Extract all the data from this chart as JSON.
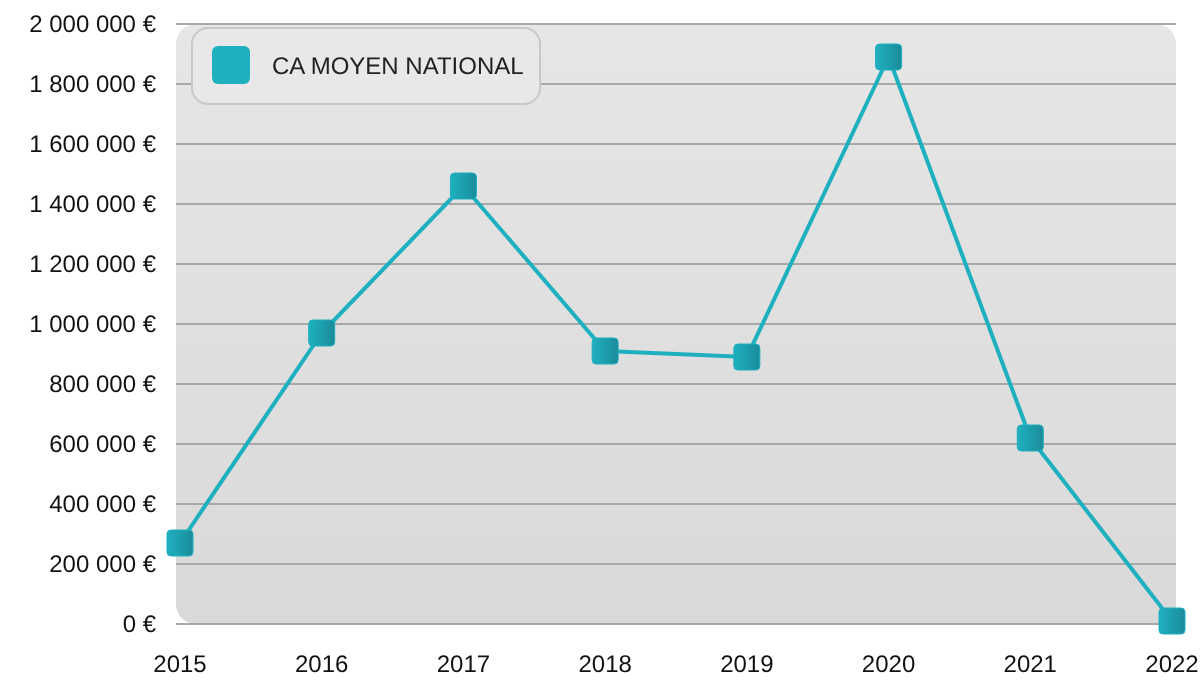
{
  "chart_data": {
    "type": "line",
    "categories": [
      "2015",
      "2016",
      "2017",
      "2018",
      "2019",
      "2020",
      "2021",
      "2022"
    ],
    "series": [
      {
        "name": "CA MOYEN NATIONAL",
        "color": "#1fb0c0",
        "values": [
          270000,
          970000,
          1460000,
          910000,
          890000,
          1890000,
          620000,
          10000
        ]
      }
    ],
    "ylim": [
      0,
      2000000
    ],
    "yticks": [
      {
        "value": 0,
        "label": "0 €"
      },
      {
        "value": 200000,
        "label": "200 000 €"
      },
      {
        "value": 400000,
        "label": "400 000 €"
      },
      {
        "value": 600000,
        "label": "600 000 €"
      },
      {
        "value": 800000,
        "label": "800 000 €"
      },
      {
        "value": 1000000,
        "label": "1 000 000 €"
      },
      {
        "value": 1200000,
        "label": "1 200 000 €"
      },
      {
        "value": 1400000,
        "label": "1 400 000 €"
      },
      {
        "value": 1600000,
        "label": "1 600 000 €"
      },
      {
        "value": 1800000,
        "label": "1 800 000 €"
      },
      {
        "value": 2000000,
        "label": "2 000 000 €"
      }
    ],
    "grid": "y",
    "legend": "top left",
    "marker": "square",
    "line_style": "solid"
  }
}
